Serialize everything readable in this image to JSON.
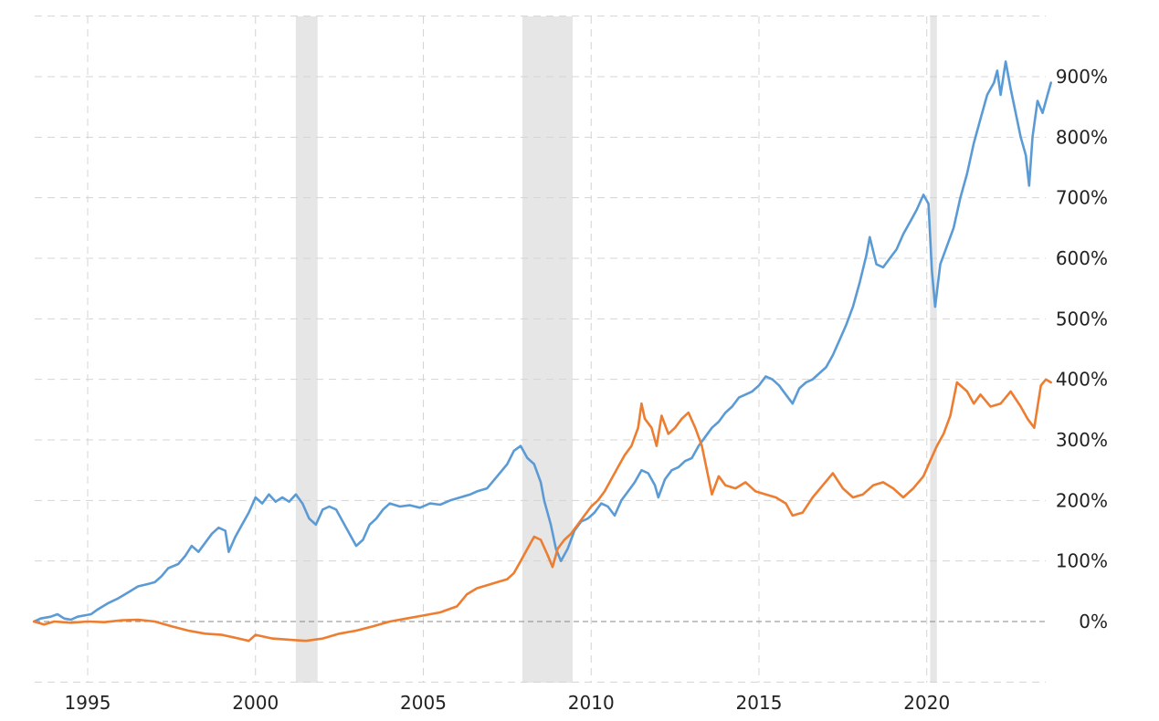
{
  "chart_data": {
    "type": "line",
    "title": "",
    "xlabel": "",
    "ylabel": "",
    "xlim": [
      1993.4,
      2023.7
    ],
    "ylim": [
      -100,
      1000
    ],
    "y_axis_side": "right",
    "grid": true,
    "x_ticks": [
      {
        "value": 1995,
        "label": "1995"
      },
      {
        "value": 2000,
        "label": "2000"
      },
      {
        "value": 2005,
        "label": "2005"
      },
      {
        "value": 2010,
        "label": "2010"
      },
      {
        "value": 2015,
        "label": "2015"
      },
      {
        "value": 2020,
        "label": "2020"
      }
    ],
    "y_ticks": [
      {
        "value": 0,
        "label": "0%"
      },
      {
        "value": 100,
        "label": "100%"
      },
      {
        "value": 200,
        "label": "200%"
      },
      {
        "value": 300,
        "label": "300%"
      },
      {
        "value": 400,
        "label": "400%"
      },
      {
        "value": 500,
        "label": "500%"
      },
      {
        "value": 600,
        "label": "600%"
      },
      {
        "value": 700,
        "label": "700%"
      },
      {
        "value": 800,
        "label": "800%"
      },
      {
        "value": 900,
        "label": "900%"
      }
    ],
    "recessions": [
      {
        "start": 2001.2,
        "end": 2001.85
      },
      {
        "start": 2007.95,
        "end": 2009.45
      },
      {
        "start": 2020.1,
        "end": 2020.3
      }
    ],
    "series": [
      {
        "name": "blue-series",
        "color": "#5b9bd5",
        "points": [
          [
            1993.4,
            0
          ],
          [
            1993.6,
            5
          ],
          [
            1993.9,
            8
          ],
          [
            1994.1,
            12
          ],
          [
            1994.3,
            5
          ],
          [
            1994.5,
            3
          ],
          [
            1994.7,
            8
          ],
          [
            1994.9,
            10
          ],
          [
            1995.1,
            12
          ],
          [
            1995.3,
            20
          ],
          [
            1995.6,
            30
          ],
          [
            1995.9,
            38
          ],
          [
            1996.2,
            48
          ],
          [
            1996.5,
            58
          ],
          [
            1996.8,
            62
          ],
          [
            1997.0,
            65
          ],
          [
            1997.2,
            75
          ],
          [
            1997.4,
            88
          ],
          [
            1997.7,
            95
          ],
          [
            1997.9,
            108
          ],
          [
            1998.1,
            125
          ],
          [
            1998.3,
            115
          ],
          [
            1998.5,
            130
          ],
          [
            1998.7,
            145
          ],
          [
            1998.9,
            155
          ],
          [
            1999.1,
            150
          ],
          [
            1999.2,
            115
          ],
          [
            1999.4,
            140
          ],
          [
            1999.6,
            160
          ],
          [
            1999.8,
            180
          ],
          [
            2000.0,
            205
          ],
          [
            2000.2,
            195
          ],
          [
            2000.4,
            210
          ],
          [
            2000.6,
            198
          ],
          [
            2000.8,
            205
          ],
          [
            2001.0,
            198
          ],
          [
            2001.2,
            210
          ],
          [
            2001.4,
            195
          ],
          [
            2001.6,
            170
          ],
          [
            2001.8,
            160
          ],
          [
            2002.0,
            185
          ],
          [
            2002.2,
            190
          ],
          [
            2002.4,
            185
          ],
          [
            2002.6,
            165
          ],
          [
            2002.8,
            145
          ],
          [
            2003.0,
            125
          ],
          [
            2003.2,
            135
          ],
          [
            2003.4,
            160
          ],
          [
            2003.6,
            170
          ],
          [
            2003.8,
            185
          ],
          [
            2004.0,
            195
          ],
          [
            2004.3,
            190
          ],
          [
            2004.6,
            192
          ],
          [
            2004.9,
            188
          ],
          [
            2005.2,
            195
          ],
          [
            2005.5,
            193
          ],
          [
            2005.8,
            200
          ],
          [
            2006.1,
            205
          ],
          [
            2006.4,
            210
          ],
          [
            2006.6,
            215
          ],
          [
            2006.9,
            220
          ],
          [
            2007.2,
            240
          ],
          [
            2007.5,
            260
          ],
          [
            2007.7,
            282
          ],
          [
            2007.9,
            290
          ],
          [
            2008.1,
            270
          ],
          [
            2008.3,
            260
          ],
          [
            2008.5,
            230
          ],
          [
            2008.6,
            200
          ],
          [
            2008.8,
            160
          ],
          [
            2008.95,
            120
          ],
          [
            2009.1,
            100
          ],
          [
            2009.3,
            120
          ],
          [
            2009.5,
            150
          ],
          [
            2009.7,
            165
          ],
          [
            2009.9,
            170
          ],
          [
            2010.1,
            180
          ],
          [
            2010.3,
            195
          ],
          [
            2010.5,
            190
          ],
          [
            2010.7,
            175
          ],
          [
            2010.9,
            200
          ],
          [
            2011.1,
            215
          ],
          [
            2011.3,
            230
          ],
          [
            2011.5,
            250
          ],
          [
            2011.7,
            245
          ],
          [
            2011.9,
            225
          ],
          [
            2012.0,
            205
          ],
          [
            2012.2,
            235
          ],
          [
            2012.4,
            250
          ],
          [
            2012.6,
            255
          ],
          [
            2012.8,
            265
          ],
          [
            2013.0,
            270
          ],
          [
            2013.2,
            290
          ],
          [
            2013.4,
            305
          ],
          [
            2013.6,
            320
          ],
          [
            2013.8,
            330
          ],
          [
            2014.0,
            345
          ],
          [
            2014.2,
            355
          ],
          [
            2014.4,
            370
          ],
          [
            2014.6,
            375
          ],
          [
            2014.8,
            380
          ],
          [
            2015.0,
            390
          ],
          [
            2015.2,
            405
          ],
          [
            2015.4,
            400
          ],
          [
            2015.6,
            390
          ],
          [
            2015.8,
            375
          ],
          [
            2016.0,
            360
          ],
          [
            2016.2,
            385
          ],
          [
            2016.4,
            395
          ],
          [
            2016.6,
            400
          ],
          [
            2016.8,
            410
          ],
          [
            2017.0,
            420
          ],
          [
            2017.2,
            440
          ],
          [
            2017.4,
            465
          ],
          [
            2017.6,
            490
          ],
          [
            2017.8,
            520
          ],
          [
            2018.0,
            560
          ],
          [
            2018.2,
            605
          ],
          [
            2018.3,
            635
          ],
          [
            2018.5,
            590
          ],
          [
            2018.7,
            585
          ],
          [
            2018.9,
            600
          ],
          [
            2019.1,
            615
          ],
          [
            2019.3,
            640
          ],
          [
            2019.5,
            660
          ],
          [
            2019.7,
            680
          ],
          [
            2019.9,
            705
          ],
          [
            2020.05,
            690
          ],
          [
            2020.15,
            580
          ],
          [
            2020.25,
            520
          ],
          [
            2020.4,
            590
          ],
          [
            2020.6,
            620
          ],
          [
            2020.8,
            650
          ],
          [
            2021.0,
            700
          ],
          [
            2021.2,
            740
          ],
          [
            2021.4,
            790
          ],
          [
            2021.6,
            830
          ],
          [
            2021.8,
            870
          ],
          [
            2022.0,
            890
          ],
          [
            2022.1,
            910
          ],
          [
            2022.2,
            870
          ],
          [
            2022.35,
            925
          ],
          [
            2022.5,
            880
          ],
          [
            2022.65,
            840
          ],
          [
            2022.8,
            800
          ],
          [
            2022.95,
            770
          ],
          [
            2023.05,
            720
          ],
          [
            2023.15,
            800
          ],
          [
            2023.3,
            860
          ],
          [
            2023.45,
            840
          ],
          [
            2023.6,
            870
          ],
          [
            2023.7,
            890
          ]
        ]
      },
      {
        "name": "orange-series",
        "color": "#ed7d31",
        "points": [
          [
            1993.4,
            0
          ],
          [
            1993.7,
            -5
          ],
          [
            1994.0,
            0
          ],
          [
            1994.5,
            -2
          ],
          [
            1995.0,
            0
          ],
          [
            1995.5,
            -1
          ],
          [
            1996.0,
            2
          ],
          [
            1996.5,
            3
          ],
          [
            1997.0,
            0
          ],
          [
            1997.5,
            -8
          ],
          [
            1998.0,
            -15
          ],
          [
            1998.5,
            -20
          ],
          [
            1999.0,
            -22
          ],
          [
            1999.5,
            -28
          ],
          [
            1999.8,
            -32
          ],
          [
            2000.0,
            -22
          ],
          [
            2000.5,
            -28
          ],
          [
            2001.0,
            -30
          ],
          [
            2001.5,
            -32
          ],
          [
            2002.0,
            -28
          ],
          [
            2002.5,
            -20
          ],
          [
            2003.0,
            -15
          ],
          [
            2003.5,
            -8
          ],
          [
            2004.0,
            0
          ],
          [
            2004.5,
            5
          ],
          [
            2005.0,
            10
          ],
          [
            2005.5,
            15
          ],
          [
            2006.0,
            25
          ],
          [
            2006.3,
            45
          ],
          [
            2006.6,
            55
          ],
          [
            2006.9,
            60
          ],
          [
            2007.2,
            65
          ],
          [
            2007.5,
            70
          ],
          [
            2007.7,
            80
          ],
          [
            2007.9,
            100
          ],
          [
            2008.1,
            120
          ],
          [
            2008.3,
            140
          ],
          [
            2008.5,
            135
          ],
          [
            2008.7,
            110
          ],
          [
            2008.85,
            90
          ],
          [
            2009.0,
            120
          ],
          [
            2009.2,
            135
          ],
          [
            2009.4,
            145
          ],
          [
            2009.6,
            160
          ],
          [
            2009.8,
            175
          ],
          [
            2010.0,
            190
          ],
          [
            2010.2,
            200
          ],
          [
            2010.4,
            215
          ],
          [
            2010.6,
            235
          ],
          [
            2010.8,
            255
          ],
          [
            2011.0,
            275
          ],
          [
            2011.2,
            290
          ],
          [
            2011.4,
            320
          ],
          [
            2011.5,
            360
          ],
          [
            2011.6,
            335
          ],
          [
            2011.8,
            320
          ],
          [
            2011.95,
            290
          ],
          [
            2012.1,
            340
          ],
          [
            2012.3,
            310
          ],
          [
            2012.5,
            320
          ],
          [
            2012.7,
            335
          ],
          [
            2012.9,
            345
          ],
          [
            2013.1,
            320
          ],
          [
            2013.3,
            290
          ],
          [
            2013.45,
            250
          ],
          [
            2013.6,
            210
          ],
          [
            2013.8,
            240
          ],
          [
            2014.0,
            225
          ],
          [
            2014.3,
            220
          ],
          [
            2014.6,
            230
          ],
          [
            2014.9,
            215
          ],
          [
            2015.2,
            210
          ],
          [
            2015.5,
            205
          ],
          [
            2015.8,
            195
          ],
          [
            2016.0,
            175
          ],
          [
            2016.3,
            180
          ],
          [
            2016.6,
            205
          ],
          [
            2016.9,
            225
          ],
          [
            2017.2,
            245
          ],
          [
            2017.5,
            220
          ],
          [
            2017.8,
            205
          ],
          [
            2018.1,
            210
          ],
          [
            2018.4,
            225
          ],
          [
            2018.7,
            230
          ],
          [
            2019.0,
            220
          ],
          [
            2019.3,
            205
          ],
          [
            2019.6,
            220
          ],
          [
            2019.9,
            240
          ],
          [
            2020.1,
            265
          ],
          [
            2020.3,
            290
          ],
          [
            2020.5,
            310
          ],
          [
            2020.7,
            340
          ],
          [
            2020.9,
            395
          ],
          [
            2021.2,
            380
          ],
          [
            2021.4,
            360
          ],
          [
            2021.6,
            375
          ],
          [
            2021.9,
            355
          ],
          [
            2022.2,
            360
          ],
          [
            2022.5,
            380
          ],
          [
            2022.8,
            355
          ],
          [
            2023.0,
            335
          ],
          [
            2023.2,
            320
          ],
          [
            2023.4,
            390
          ],
          [
            2023.55,
            400
          ],
          [
            2023.7,
            395
          ]
        ]
      }
    ]
  }
}
